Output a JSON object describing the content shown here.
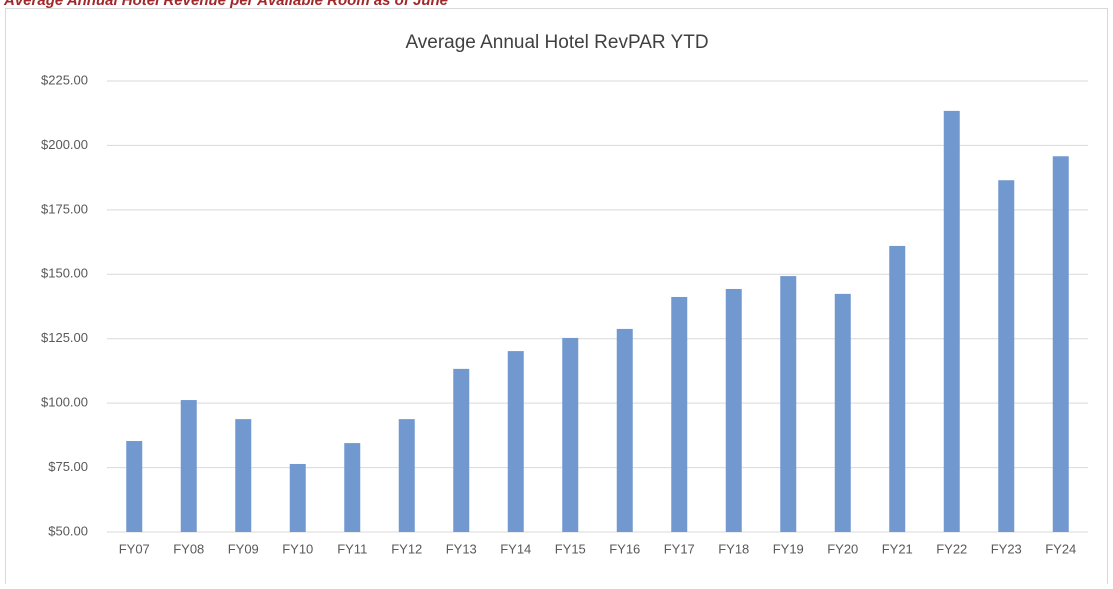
{
  "page_heading": "Average Annual Hotel Revenue per Available Room as of June",
  "chart_data": {
    "type": "bar",
    "title": "Average Annual Hotel RevPAR YTD",
    "categories": [
      "FY07",
      "FY08",
      "FY09",
      "FY10",
      "FY11",
      "FY12",
      "FY13",
      "FY14",
      "FY15",
      "FY16",
      "FY17",
      "FY18",
      "FY19",
      "FY20",
      "FY21",
      "FY22",
      "FY23",
      "FY24"
    ],
    "values": [
      85.3,
      101.2,
      93.8,
      76.4,
      84.5,
      93.8,
      113.3,
      120.2,
      125.3,
      128.8,
      141.2,
      144.3,
      149.3,
      142.4,
      161.0,
      213.4,
      186.5,
      195.8
    ],
    "color": "#7199cf",
    "ylim": [
      50,
      225
    ],
    "yticks": [
      {
        "value": 50,
        "label": "$50.00"
      },
      {
        "value": 75,
        "label": "$75.00"
      },
      {
        "value": 100,
        "label": "$100.00"
      },
      {
        "value": 125,
        "label": "$125.00"
      },
      {
        "value": 150,
        "label": "$150.00"
      },
      {
        "value": 175,
        "label": "$175.00"
      },
      {
        "value": 200,
        "label": "$200.00"
      },
      {
        "value": 225,
        "label": "$225.00"
      }
    ],
    "grid": true
  }
}
